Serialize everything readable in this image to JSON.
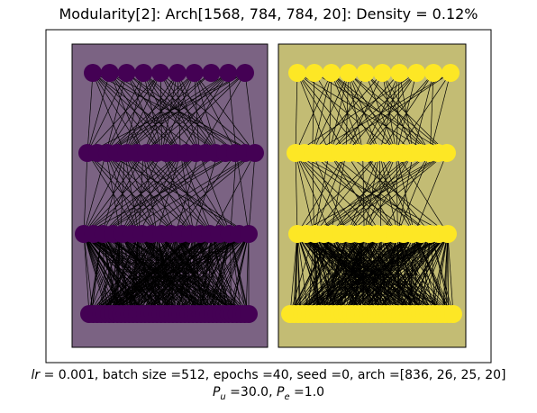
{
  "title": "Modularity[2]: Arch[1568, 784, 784, 20]: Density = 0.12%",
  "caption": {
    "lr_symbol": "lr",
    "line1_rest": " =  0.001, batch size =512, epochs =40, seed =0, arch =[836, 26, 25, 20]",
    "pu_symbol": "P",
    "pu_sub": "u",
    "pu_rest": " =30.0, ",
    "pe_symbol": "P",
    "pe_sub": "e",
    "pe_rest": " =1.0"
  },
  "modules": [
    {
      "id": "module-1",
      "fill": "#7b6383",
      "node_color": "#440154"
    },
    {
      "id": "module-2",
      "fill": "#c3bc74",
      "node_color": "#fde725"
    }
  ],
  "edge_color": "#000000"
}
